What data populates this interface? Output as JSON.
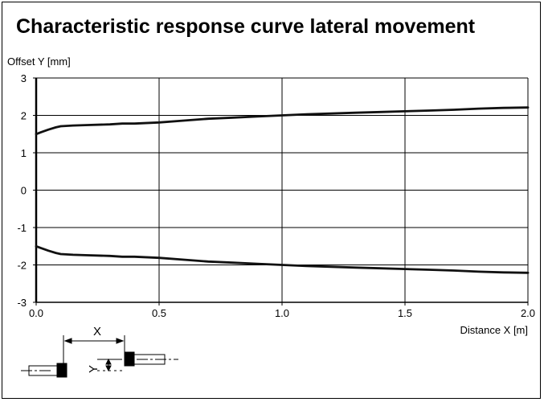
{
  "chart_data": {
    "type": "line",
    "title": "Characteristic response curve lateral movement",
    "xlabel": "Distance X [m]",
    "ylabel": "Offset Y [mm]",
    "xlim": [
      0.0,
      2.0
    ],
    "ylim": [
      -3,
      3
    ],
    "x_ticks": [
      "0.0",
      "0.5",
      "1.0",
      "1.5",
      "2.0"
    ],
    "y_ticks": [
      "3",
      "2",
      "1",
      "0",
      "-1",
      "-2",
      "-3"
    ],
    "grid": true,
    "colors": {
      "line": "#111111",
      "grid": "#000000"
    },
    "series": [
      {
        "x": [
          0.0,
          0.02,
          0.05,
          0.08,
          0.1,
          0.15,
          0.2,
          0.3,
          0.35,
          0.4,
          0.5,
          0.6,
          0.7,
          0.8,
          0.9,
          1.0,
          1.1,
          1.2,
          1.3,
          1.4,
          1.5,
          1.6,
          1.7,
          1.8,
          1.9,
          2.0
        ],
        "y": [
          1.5,
          1.55,
          1.62,
          1.68,
          1.71,
          1.73,
          1.74,
          1.76,
          1.78,
          1.78,
          1.81,
          1.86,
          1.91,
          1.94,
          1.97,
          2.0,
          2.03,
          2.05,
          2.07,
          2.09,
          2.11,
          2.13,
          2.15,
          2.18,
          2.2,
          2.21
        ]
      },
      {
        "x": [
          0.0,
          0.02,
          0.05,
          0.08,
          0.1,
          0.15,
          0.2,
          0.3,
          0.35,
          0.4,
          0.5,
          0.6,
          0.7,
          0.8,
          0.9,
          1.0,
          1.1,
          1.2,
          1.3,
          1.4,
          1.5,
          1.6,
          1.7,
          1.8,
          1.9,
          2.0
        ],
        "y": [
          -1.5,
          -1.55,
          -1.62,
          -1.68,
          -1.71,
          -1.73,
          -1.74,
          -1.76,
          -1.78,
          -1.78,
          -1.81,
          -1.86,
          -1.91,
          -1.94,
          -1.97,
          -2.0,
          -2.03,
          -2.05,
          -2.07,
          -2.09,
          -2.11,
          -2.13,
          -2.15,
          -2.18,
          -2.2,
          -2.21
        ]
      }
    ]
  },
  "diagram": {
    "x_label": "X",
    "y_label": "Y"
  }
}
